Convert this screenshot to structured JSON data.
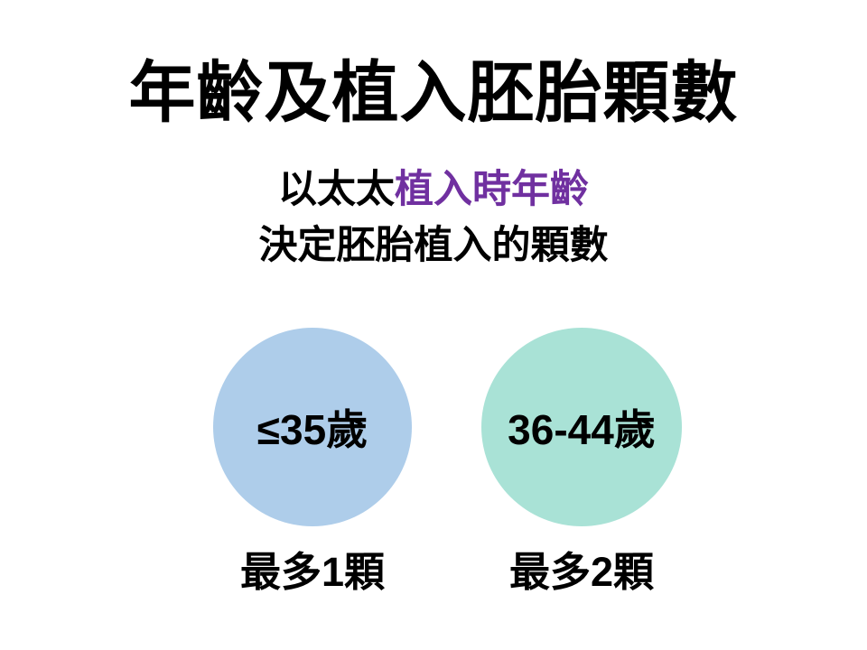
{
  "slide": {
    "title": "年齡及植入胚胎顆數",
    "subtitle": {
      "line1_black": "以太太",
      "line1_highlight": "植入時年齡",
      "line2": "決定胚胎植入的顆數"
    },
    "groups": [
      {
        "age": "≤35歲",
        "caption": "最多1顆",
        "circle_color": "#AECDEA"
      },
      {
        "age": "36-44歲",
        "caption": "最多2顆",
        "circle_color": "#A9E2D6"
      }
    ],
    "colors": {
      "background": "#FFFFFF",
      "text": "#000000",
      "accent_purple": "#7030A0",
      "circle_blue": "#AECDEA",
      "circle_teal": "#A9E2D6"
    }
  }
}
